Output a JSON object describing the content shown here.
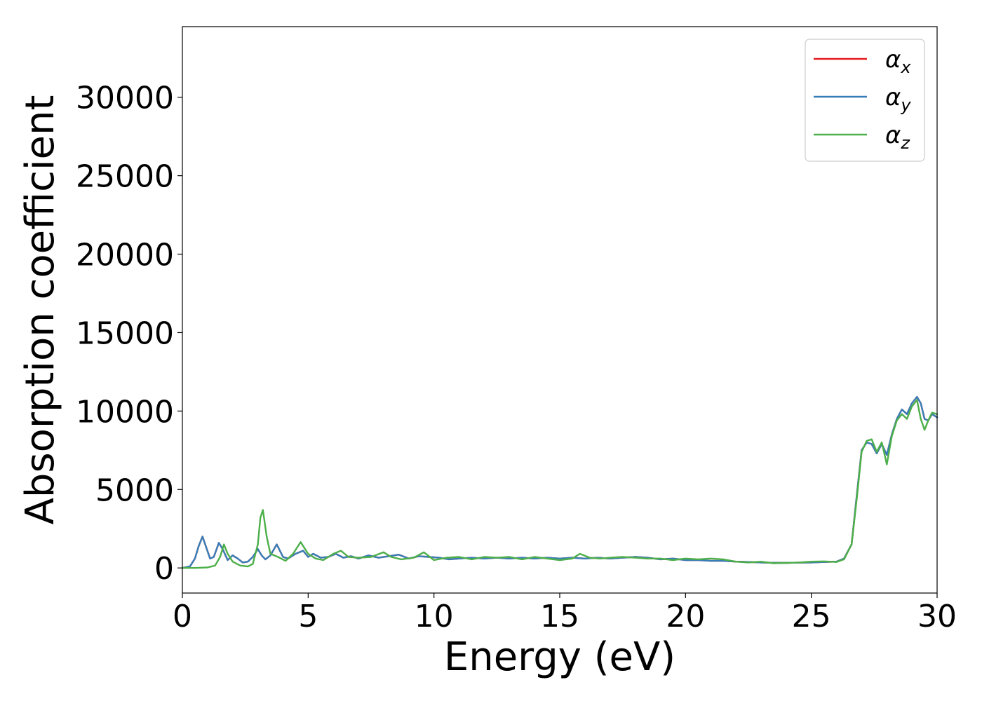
{
  "chart_data": {
    "type": "line",
    "xlabel": "Energy (eV)",
    "ylabel": "Absorption coefficient",
    "xlim": [
      0,
      30
    ],
    "ylim": [
      -1600,
      34500
    ],
    "xticks": [
      0,
      5,
      10,
      15,
      20,
      25,
      30
    ],
    "yticks": [
      0,
      5000,
      10000,
      15000,
      20000,
      25000,
      30000
    ],
    "grid": false,
    "legend_position": "top-right",
    "series": [
      {
        "name": "α_x",
        "label_main": "α",
        "label_sub": "x",
        "color": "#e41a1c",
        "x": [
          0,
          0.3,
          0.5,
          0.65,
          0.8,
          0.95,
          1.1,
          1.25,
          1.45,
          1.6,
          1.8,
          2.0,
          2.2,
          2.4,
          2.6,
          2.8,
          3.0,
          3.15,
          3.3,
          3.5,
          3.75,
          4.0,
          4.2,
          4.5,
          4.8,
          5.0,
          5.2,
          5.5,
          5.8,
          6.1,
          6.4,
          6.7,
          7.0,
          7.4,
          7.8,
          8.2,
          8.6,
          9.0,
          9.4,
          9.8,
          10.2,
          10.6,
          11.0,
          11.5,
          12.0,
          12.5,
          13.0,
          13.5,
          14.0,
          14.5,
          15.0,
          15.5,
          16.0,
          16.5,
          17.0,
          17.5,
          18.0,
          18.5,
          19.0,
          19.5,
          20.0,
          20.5,
          21.0,
          21.5,
          22.0,
          22.5,
          23.0,
          23.5,
          24.0,
          24.5,
          25.0,
          25.5,
          26.0,
          26.3,
          26.6,
          26.8,
          27.0,
          27.2,
          27.4,
          27.6,
          27.8,
          28.0,
          28.2,
          28.4,
          28.6,
          28.8,
          29.0,
          29.2,
          29.35,
          29.5,
          29.65,
          29.8,
          30.0
        ],
        "y": [
          0,
          100,
          600,
          1400,
          2000,
          1300,
          600,
          700,
          1600,
          1200,
          500,
          800,
          600,
          350,
          400,
          700,
          1200,
          800,
          550,
          800,
          1500,
          700,
          600,
          900,
          1100,
          700,
          900,
          650,
          700,
          900,
          650,
          750,
          600,
          800,
          650,
          750,
          850,
          600,
          750,
          700,
          650,
          550,
          600,
          650,
          600,
          650,
          600,
          650,
          600,
          650,
          600,
          650,
          600,
          650,
          600,
          650,
          700,
          650,
          550,
          600,
          500,
          500,
          450,
          450,
          400,
          380,
          350,
          330,
          320,
          340,
          350,
          380,
          400,
          600,
          1500,
          4500,
          7500,
          8000,
          7900,
          7300,
          7900,
          7200,
          8500,
          9500,
          10100,
          9800,
          10500,
          10900,
          10500,
          9500,
          9400,
          9800,
          9600
        ]
      },
      {
        "name": "α_y",
        "label_main": "α",
        "label_sub": "y",
        "color": "#377eb8",
        "x": [
          0,
          0.3,
          0.5,
          0.65,
          0.8,
          0.95,
          1.1,
          1.25,
          1.45,
          1.6,
          1.8,
          2.0,
          2.2,
          2.4,
          2.6,
          2.8,
          3.0,
          3.15,
          3.3,
          3.5,
          3.75,
          4.0,
          4.2,
          4.5,
          4.8,
          5.0,
          5.2,
          5.5,
          5.8,
          6.1,
          6.4,
          6.7,
          7.0,
          7.4,
          7.8,
          8.2,
          8.6,
          9.0,
          9.4,
          9.8,
          10.2,
          10.6,
          11.0,
          11.5,
          12.0,
          12.5,
          13.0,
          13.5,
          14.0,
          14.5,
          15.0,
          15.5,
          16.0,
          16.5,
          17.0,
          17.5,
          18.0,
          18.5,
          19.0,
          19.5,
          20.0,
          20.5,
          21.0,
          21.5,
          22.0,
          22.5,
          23.0,
          23.5,
          24.0,
          24.5,
          25.0,
          25.5,
          26.0,
          26.3,
          26.6,
          26.8,
          27.0,
          27.2,
          27.4,
          27.6,
          27.8,
          28.0,
          28.2,
          28.4,
          28.6,
          28.8,
          29.0,
          29.2,
          29.35,
          29.5,
          29.65,
          29.8,
          30.0
        ],
        "y": [
          0,
          100,
          600,
          1400,
          2000,
          1300,
          600,
          700,
          1600,
          1200,
          500,
          800,
          600,
          350,
          400,
          700,
          1200,
          800,
          550,
          800,
          1500,
          700,
          600,
          900,
          1100,
          700,
          900,
          650,
          700,
          900,
          650,
          750,
          600,
          800,
          650,
          750,
          850,
          600,
          750,
          700,
          650,
          550,
          600,
          650,
          600,
          650,
          600,
          650,
          600,
          650,
          600,
          650,
          600,
          650,
          600,
          650,
          700,
          650,
          550,
          600,
          500,
          500,
          450,
          450,
          400,
          380,
          350,
          330,
          320,
          340,
          350,
          380,
          400,
          600,
          1500,
          4500,
          7500,
          8000,
          7900,
          7300,
          7900,
          7200,
          8500,
          9500,
          10100,
          9800,
          10500,
          10900,
          10500,
          9500,
          9400,
          9800,
          9600
        ]
      },
      {
        "name": "α_z",
        "label_main": "α",
        "label_sub": "z",
        "color": "#4daf4a",
        "x": [
          0,
          0.5,
          1.0,
          1.3,
          1.5,
          1.65,
          1.8,
          2.0,
          2.3,
          2.6,
          2.8,
          3.0,
          3.1,
          3.2,
          3.35,
          3.5,
          3.8,
          4.1,
          4.4,
          4.7,
          5.0,
          5.3,
          5.6,
          6.0,
          6.3,
          6.6,
          7.0,
          7.5,
          8.0,
          8.3,
          8.7,
          9.2,
          9.6,
          10.0,
          10.5,
          11.0,
          11.5,
          12.0,
          12.5,
          13.0,
          13.5,
          14.0,
          14.5,
          15.0,
          15.5,
          15.8,
          16.2,
          16.6,
          17.0,
          17.5,
          18.0,
          18.5,
          19.0,
          19.5,
          20.0,
          20.5,
          21.0,
          21.5,
          22.0,
          22.5,
          23.0,
          23.5,
          24.0,
          24.5,
          25.0,
          25.5,
          26.0,
          26.3,
          26.6,
          26.8,
          27.0,
          27.2,
          27.4,
          27.6,
          27.8,
          28.0,
          28.2,
          28.4,
          28.6,
          28.8,
          29.0,
          29.2,
          29.35,
          29.5,
          29.65,
          29.8,
          30.0
        ],
        "y": [
          0,
          0,
          30,
          150,
          700,
          1500,
          900,
          400,
          150,
          100,
          250,
          1500,
          3200,
          3700,
          2000,
          900,
          700,
          450,
          900,
          1650,
          900,
          600,
          500,
          900,
          1100,
          700,
          650,
          700,
          1000,
          700,
          550,
          650,
          1000,
          500,
          650,
          700,
          550,
          700,
          650,
          700,
          550,
          700,
          600,
          500,
          600,
          900,
          650,
          600,
          650,
          700,
          650,
          600,
          600,
          500,
          600,
          550,
          600,
          550,
          400,
          350,
          400,
          300,
          320,
          350,
          400,
          420,
          380,
          550,
          1500,
          4300,
          7400,
          8100,
          8200,
          7400,
          8000,
          6600,
          8400,
          9400,
          9800,
          9500,
          10300,
          10700,
          9500,
          8800,
          9400,
          9900,
          9800
        ]
      }
    ]
  }
}
